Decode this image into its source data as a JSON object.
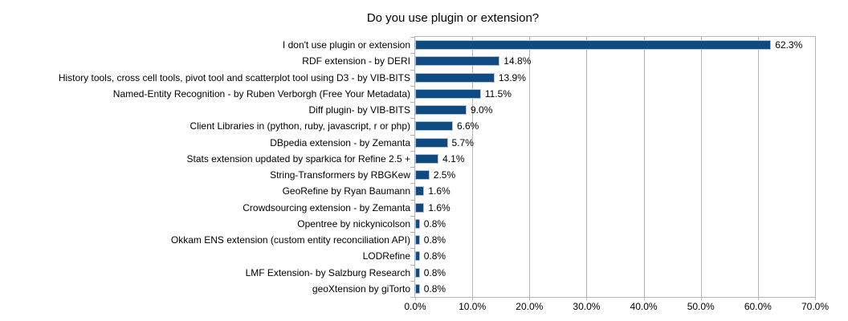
{
  "chart_data": {
    "type": "bar",
    "orientation": "horizontal",
    "title": "Do you use plugin or extension?",
    "categories": [
      "I don't use plugin or extension",
      "RDF extension - by DERI",
      "History tools, cross cell tools, pivot tool and scatterplot tool using D3 - by VIB-BITS",
      "Named-Entity Recognition - by Ruben Verborgh (Free Your Metadata)",
      "Diff plugin- by VIB-BITS",
      "Client Libraries in (python, ruby, javascript, r or php)",
      "DBpedia extension - by Zemanta",
      "Stats extension updated by sparkica for Refine 2.5 +",
      "String-Transformers by RBGKew",
      "GeoRefine by Ryan Baumann",
      "Crowdsourcing extension - by Zemanta",
      "Opentree by nickynicolson",
      "Okkam ENS extension (custom entity reconciliation API)",
      "LODRefine",
      "LMF Extension- by Salzburg Research",
      "geoXtension by giTorto"
    ],
    "values": [
      62.3,
      14.8,
      13.9,
      11.5,
      9.0,
      6.6,
      5.7,
      4.1,
      2.5,
      1.6,
      1.6,
      0.8,
      0.8,
      0.8,
      0.8,
      0.8
    ],
    "value_labels": [
      "62.3%",
      "14.8%",
      "13.9%",
      "11.5%",
      "9.0%",
      "6.6%",
      "5.7%",
      "4.1%",
      "2.5%",
      "1.6%",
      "1.6%",
      "0.8%",
      "0.8%",
      "0.8%",
      "0.8%",
      "0.8%"
    ],
    "xlabel": "",
    "ylabel": "",
    "xlim": [
      0,
      70
    ],
    "x_tick_step": 10,
    "x_tick_labels": [
      "0.0%",
      "10.0%",
      "20.0%",
      "30.0%",
      "40.0%",
      "50.0%",
      "60.0%",
      "70.0%"
    ],
    "grid": "vertical",
    "legend": "none",
    "colors": {
      "bar_fill": "#0f4a80",
      "bar_border": "#b1c2da",
      "grid_line": "#b3b3b3",
      "axis_line": "#b3b3b3",
      "text": "#000000",
      "background": "#ffffff"
    }
  }
}
